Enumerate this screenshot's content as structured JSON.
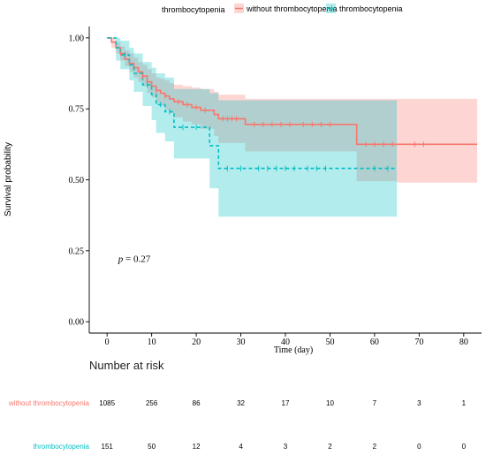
{
  "chart_data": {
    "type": "line",
    "subtype": "kaplan-meier",
    "legend": {
      "title": "thrombocytopenia",
      "placement": "top",
      "entries": [
        {
          "name": "without thrombocytopenia",
          "color": "#F8766D"
        },
        {
          "name": "thrombocytopenia",
          "color": "#00BFC4"
        }
      ]
    },
    "xlabel": "Time (day)",
    "ylabel": "Survival probability",
    "xlim": [
      -4,
      84
    ],
    "ylim": [
      -0.04,
      1.04
    ],
    "x_ticks": [
      0,
      10,
      20,
      30,
      40,
      50,
      60,
      70,
      80
    ],
    "y_ticks": [
      0.0,
      0.25,
      0.5,
      0.75,
      1.0
    ],
    "y_tick_labels": [
      "0.00",
      "0.25",
      "0.50",
      "0.75",
      "1.00"
    ],
    "grid": false,
    "annotation": {
      "p_symbol": "p",
      "p_text": " = 0.27",
      "x": 2.5,
      "y": 0.21
    },
    "series": [
      {
        "name": "without thrombocytopenia",
        "color": "#F8766D",
        "line_style": "solid",
        "steps": [
          [
            0,
            1.0
          ],
          [
            1,
            0.985
          ],
          [
            2,
            0.965
          ],
          [
            3,
            0.945
          ],
          [
            4,
            0.925
          ],
          [
            5,
            0.91
          ],
          [
            6,
            0.895
          ],
          [
            7,
            0.88
          ],
          [
            8,
            0.865
          ],
          [
            9,
            0.845
          ],
          [
            10,
            0.83
          ],
          [
            11,
            0.815
          ],
          [
            12,
            0.805
          ],
          [
            13,
            0.795
          ],
          [
            14,
            0.785
          ],
          [
            15,
            0.775
          ],
          [
            17,
            0.765
          ],
          [
            19,
            0.755
          ],
          [
            21,
            0.745
          ],
          [
            24,
            0.73
          ],
          [
            25,
            0.715
          ],
          [
            31,
            0.695
          ],
          [
            56,
            0.625
          ],
          [
            83,
            0.625
          ]
        ],
        "ci_upper": [
          [
            0,
            1.0
          ],
          [
            1,
            1.0
          ],
          [
            2,
            0.985
          ],
          [
            3,
            0.97
          ],
          [
            4,
            0.955
          ],
          [
            5,
            0.945
          ],
          [
            6,
            0.93
          ],
          [
            7,
            0.915
          ],
          [
            8,
            0.905
          ],
          [
            9,
            0.89
          ],
          [
            10,
            0.875
          ],
          [
            11,
            0.86
          ],
          [
            12,
            0.855
          ],
          [
            13,
            0.85
          ],
          [
            14,
            0.84
          ],
          [
            15,
            0.835
          ],
          [
            17,
            0.83
          ],
          [
            19,
            0.825
          ],
          [
            21,
            0.82
          ],
          [
            24,
            0.81
          ],
          [
            25,
            0.8
          ],
          [
            31,
            0.785
          ],
          [
            56,
            0.785
          ],
          [
            65,
            0.785
          ],
          [
            83,
            0.785
          ]
        ],
        "ci_lower": [
          [
            0,
            1.0
          ],
          [
            1,
            0.965
          ],
          [
            2,
            0.945
          ],
          [
            3,
            0.92
          ],
          [
            4,
            0.9
          ],
          [
            5,
            0.88
          ],
          [
            6,
            0.86
          ],
          [
            7,
            0.845
          ],
          [
            8,
            0.83
          ],
          [
            9,
            0.805
          ],
          [
            10,
            0.79
          ],
          [
            11,
            0.77
          ],
          [
            12,
            0.76
          ],
          [
            13,
            0.745
          ],
          [
            14,
            0.735
          ],
          [
            15,
            0.72
          ],
          [
            17,
            0.705
          ],
          [
            19,
            0.695
          ],
          [
            21,
            0.68
          ],
          [
            24,
            0.655
          ],
          [
            25,
            0.63
          ],
          [
            31,
            0.6
          ],
          [
            56,
            0.495
          ],
          [
            65,
            0.49
          ],
          [
            83,
            0.49
          ]
        ],
        "censor_times": [
          3,
          5,
          8,
          11,
          13,
          16,
          18,
          20,
          22,
          26,
          27,
          28,
          29,
          33,
          35,
          37,
          39,
          41,
          44,
          46,
          48,
          50,
          58,
          60,
          62,
          64,
          69,
          71
        ]
      },
      {
        "name": "thrombocytopenia",
        "color": "#00BFC4",
        "line_style": "dashed",
        "steps": [
          [
            0,
            1.0
          ],
          [
            2,
            0.965
          ],
          [
            3,
            0.94
          ],
          [
            5,
            0.905
          ],
          [
            6,
            0.875
          ],
          [
            8,
            0.835
          ],
          [
            10,
            0.8
          ],
          [
            11,
            0.765
          ],
          [
            13,
            0.74
          ],
          [
            15,
            0.685
          ],
          [
            23,
            0.62
          ],
          [
            25,
            0.54
          ],
          [
            65,
            0.54
          ]
        ],
        "ci_upper": [
          [
            0,
            1.0
          ],
          [
            2,
            1.0
          ],
          [
            3,
            0.99
          ],
          [
            5,
            0.965
          ],
          [
            6,
            0.945
          ],
          [
            8,
            0.915
          ],
          [
            10,
            0.895
          ],
          [
            11,
            0.875
          ],
          [
            13,
            0.86
          ],
          [
            15,
            0.82
          ],
          [
            23,
            0.805
          ],
          [
            25,
            0.78
          ],
          [
            65,
            0.78
          ]
        ],
        "ci_lower": [
          [
            0,
            1.0
          ],
          [
            2,
            0.92
          ],
          [
            3,
            0.89
          ],
          [
            5,
            0.85
          ],
          [
            6,
            0.81
          ],
          [
            8,
            0.76
          ],
          [
            10,
            0.71
          ],
          [
            11,
            0.665
          ],
          [
            13,
            0.635
          ],
          [
            15,
            0.575
          ],
          [
            23,
            0.47
          ],
          [
            25,
            0.37
          ],
          [
            65,
            0.37
          ]
        ],
        "censor_times": [
          4,
          9,
          12,
          14,
          17,
          20,
          27,
          30,
          34,
          36,
          38,
          40,
          42,
          45,
          47,
          49,
          60,
          63
        ]
      }
    ]
  },
  "risk_table": {
    "title": "Number at risk",
    "rows": [
      {
        "label": "without thrombocytopenia",
        "color": "#F8766D",
        "values": [
          "1085",
          "256",
          "86",
          "32",
          "17",
          "10",
          "7",
          "3",
          "1"
        ]
      },
      {
        "label": "thrombocytopenia",
        "color": "#00BFC4",
        "values": [
          "151",
          "50",
          "12",
          "4",
          "3",
          "2",
          "2",
          "0",
          "0"
        ]
      }
    ]
  }
}
